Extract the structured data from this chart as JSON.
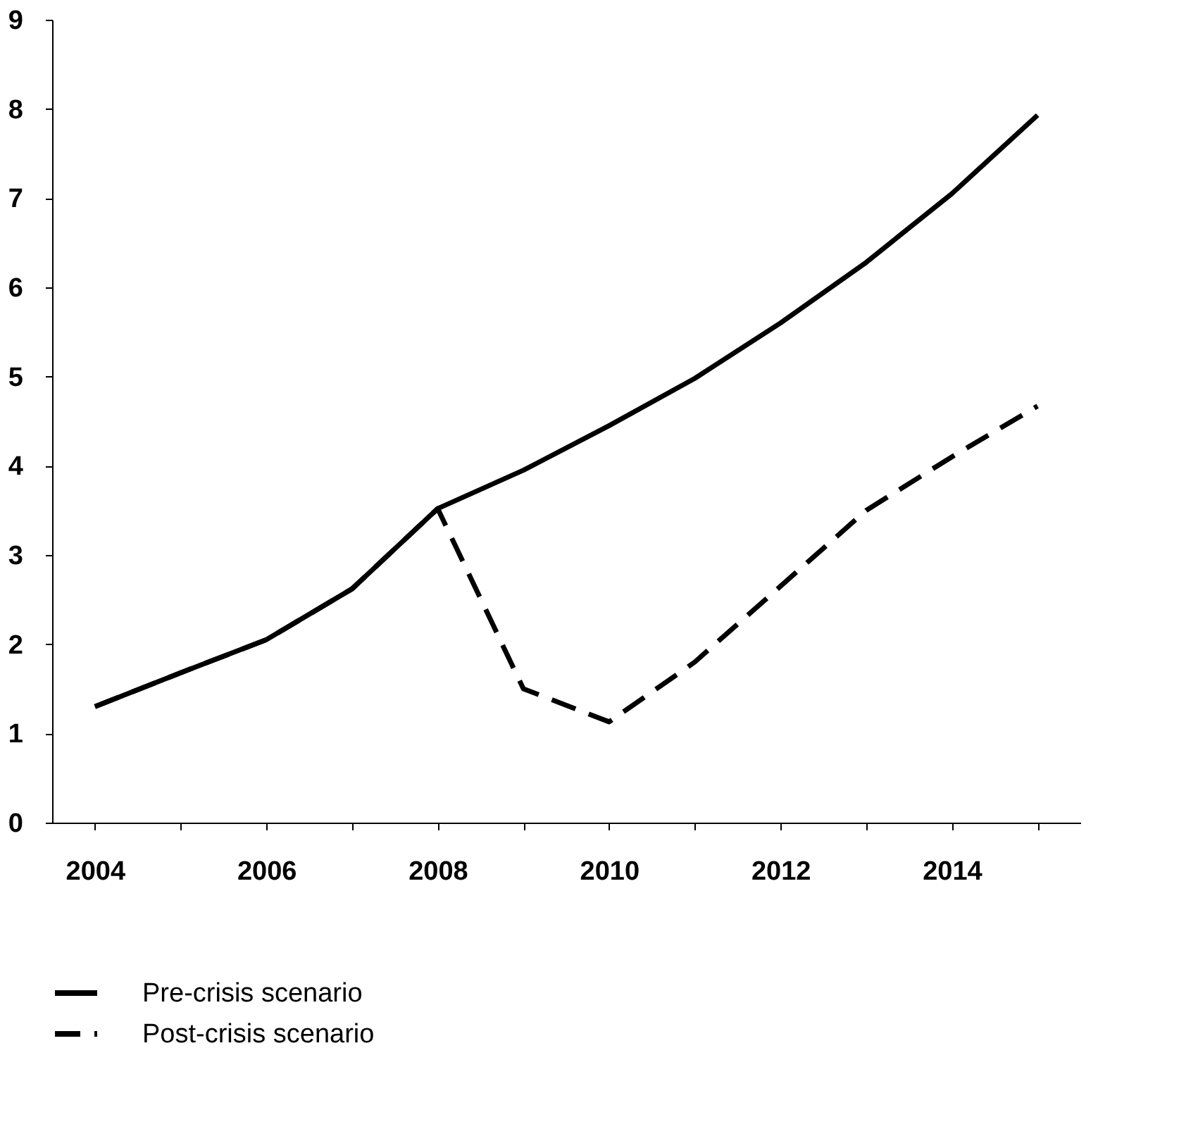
{
  "chart_data": {
    "type": "line",
    "categories": [
      "2004",
      null,
      "2006",
      null,
      "2008",
      null,
      "2010",
      null,
      "2012",
      null,
      "2014",
      null
    ],
    "series": [
      {
        "name": "Pre-crisis scenario",
        "color": "#000000",
        "line_style": "solid",
        "values": [
          1.3,
          1.68,
          2.05,
          2.62,
          3.52,
          3.95,
          4.45,
          4.98,
          5.6,
          6.28,
          7.05,
          7.93
        ]
      },
      {
        "name": "Post-crisis scenario",
        "color": "#000000",
        "line_style": "dashed",
        "values": [
          1.3,
          1.68,
          2.05,
          2.62,
          3.52,
          1.5,
          1.13,
          1.8,
          2.65,
          3.5,
          4.1,
          4.67
        ]
      }
    ],
    "ylim": [
      0,
      9
    ],
    "yticks": [
      0,
      1,
      2,
      3,
      4,
      5,
      6,
      7,
      8,
      9
    ],
    "grid": false,
    "legend": "bottom",
    "marker": "none"
  }
}
